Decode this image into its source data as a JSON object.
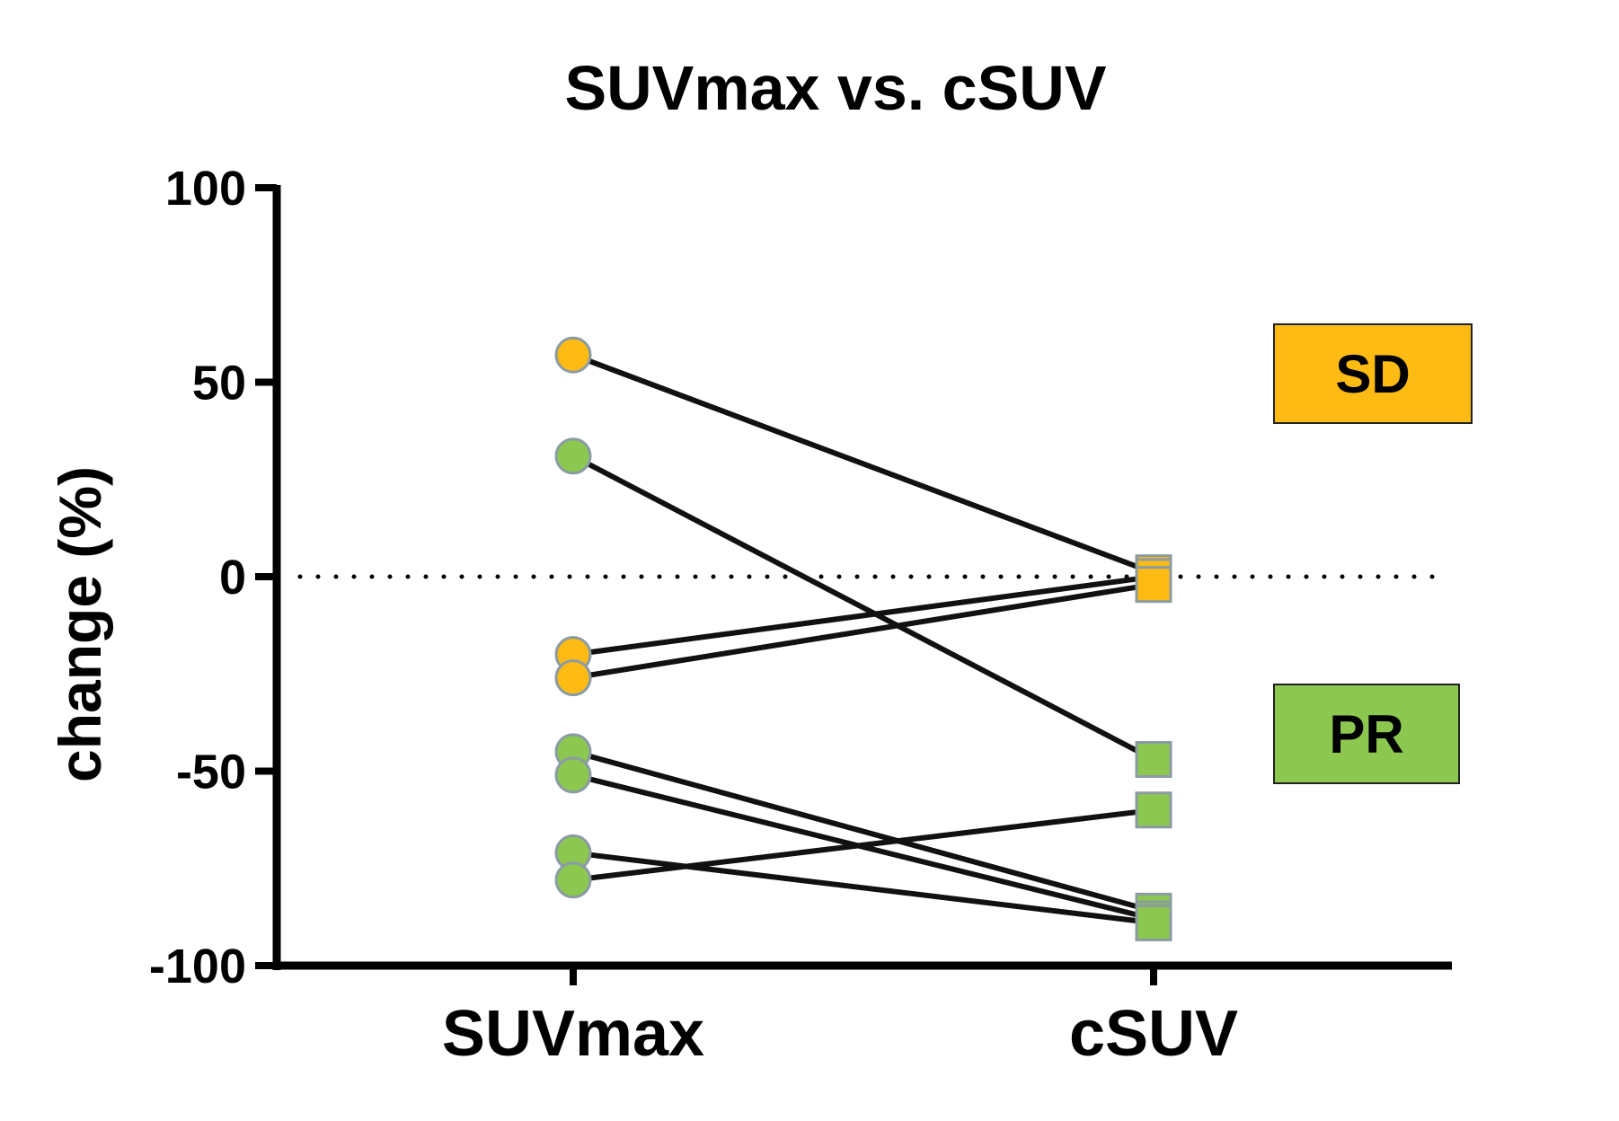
{
  "chart_data": {
    "type": "line",
    "title": "SUVmax vs. cSUV",
    "xlabel": "",
    "ylabel": "change (%)",
    "categories": [
      "SUVmax",
      "cSUV"
    ],
    "ylim": [
      -100,
      100
    ],
    "yticks": [
      100,
      50,
      0,
      -50,
      -100
    ],
    "reference_line": {
      "y": 0,
      "style": "dotted"
    },
    "legend": [
      {
        "label": "SD",
        "color": "#FDBB13"
      },
      {
        "label": "PR",
        "color": "#8CC850"
      }
    ],
    "colors": {
      "SD": "#FDBB13",
      "PR": "#8CC850",
      "marker_edge": "#8A9BA3",
      "line": "#111111"
    },
    "series": [
      {
        "group": "SD",
        "values": [
          57,
          1
        ]
      },
      {
        "group": "SD",
        "values": [
          -20,
          0
        ]
      },
      {
        "group": "SD",
        "values": [
          -26,
          -2
        ]
      },
      {
        "group": "PR",
        "values": [
          31,
          -47
        ]
      },
      {
        "group": "PR",
        "values": [
          -45,
          -86
        ]
      },
      {
        "group": "PR",
        "values": [
          -51,
          -88
        ]
      },
      {
        "group": "PR",
        "values": [
          -71,
          -89
        ]
      },
      {
        "group": "PR",
        "values": [
          -78,
          -60
        ]
      }
    ]
  }
}
